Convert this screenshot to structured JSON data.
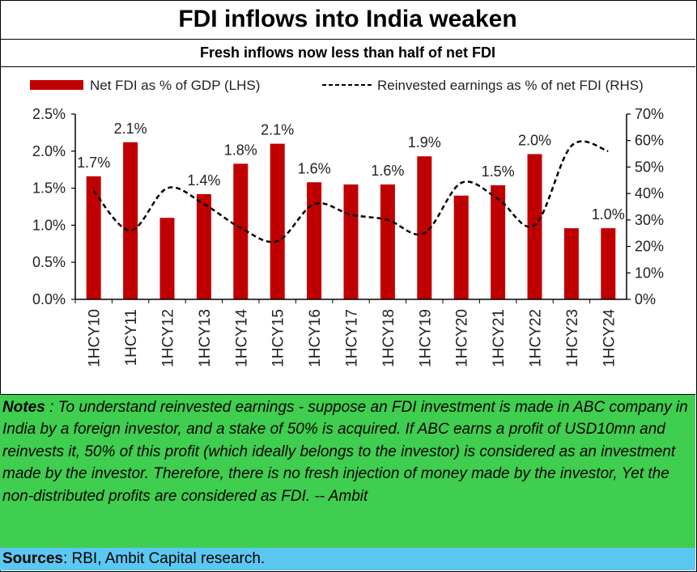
{
  "header": {
    "title": "FDI inflows into India weaken",
    "subtitle": "Fresh inflows now less than half of net FDI"
  },
  "notes": {
    "label": "Notes",
    "text": " : To understand reinvested earnings - suppose an FDI investment is made in ABC company in India by a foreign investor, and a stake of 50% is acquired. If ABC earns a profit of USD10mn and reinvests it, 50% of this profit (which ideally belongs to the investor) is considered as an investment made by the investor. Therefore, there is no fresh injection of money made by the investor, Yet the non-distributed profits are considered as FDI. -- Ambit"
  },
  "sources": {
    "label": "Sources",
    "text": ": RBI, Ambit Capital research."
  },
  "colors": {
    "bar": "#c00000",
    "line": "#000000",
    "notes_bg": "#3fce4f",
    "sources_bg": "#5bc8f2"
  },
  "chart_data": {
    "type": "bar",
    "categories": [
      "1HCY10",
      "1HCY11",
      "1HCY12",
      "1HCY13",
      "1HCY14",
      "1HCY15",
      "1HCY16",
      "1HCY17",
      "1HCY18",
      "1HCY19",
      "1HCY20",
      "1HCY21",
      "1HCY22",
      "1HCY23",
      "1HCY24"
    ],
    "series": [
      {
        "name": "Net FDI as % of GDP (LHS)",
        "type": "bar",
        "axis": "left",
        "values": [
          1.66,
          2.12,
          1.1,
          1.42,
          1.83,
          2.1,
          1.58,
          1.55,
          1.55,
          1.93,
          1.4,
          1.54,
          1.96,
          0.96,
          0.96
        ],
        "labels": [
          "1.7%",
          "2.1%",
          "",
          "1.4%",
          "1.8%",
          "2.1%",
          "1.6%",
          "",
          "1.6%",
          "1.9%",
          "",
          "1.5%",
          "2.0%",
          "",
          "1.0%"
        ]
      },
      {
        "name": "Reinvested earnings as % of net FDI (RHS)",
        "type": "line",
        "style": "dashed",
        "axis": "right",
        "values": [
          41,
          26,
          42,
          36,
          27,
          22,
          36,
          32,
          30,
          25,
          44,
          38,
          28,
          58,
          56
        ]
      }
    ],
    "y_left": {
      "min": 0,
      "max": 2.5,
      "ticks": [
        "0.0%",
        "0.5%",
        "1.0%",
        "1.5%",
        "2.0%",
        "2.5%"
      ]
    },
    "y_right": {
      "min": 0,
      "max": 70,
      "ticks": [
        "0%",
        "10%",
        "20%",
        "30%",
        "40%",
        "50%",
        "60%",
        "70%"
      ]
    },
    "legend_position": "top",
    "grid": false
  }
}
